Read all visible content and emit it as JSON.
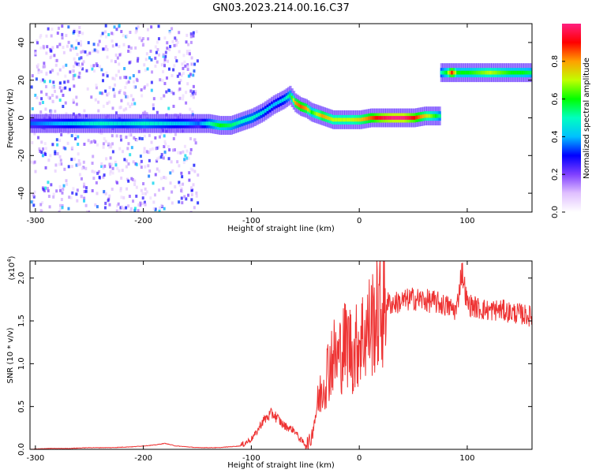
{
  "title": "GN03.2023.214.00.16.C37",
  "chart_data": [
    {
      "type": "heatmap",
      "xlabel": "Height of straight line (km)",
      "ylabel": "Frequency (Hz)",
      "xlim": [
        -305,
        160
      ],
      "ylim": [
        -50,
        50
      ],
      "xticks": [
        -300,
        -200,
        -100,
        0,
        100
      ],
      "yticks": [
        -40,
        -20,
        0,
        20,
        40
      ],
      "colorbar": {
        "label": "Normalized spectral amplitude",
        "range": [
          0,
          1
        ],
        "ticks": [
          "0.0",
          "0.2",
          "0.4",
          "0.6",
          "0.8"
        ],
        "colormap": [
          "#ffffff",
          "#e0c0ff",
          "#8040ff",
          "#0000ff",
          "#00c0ff",
          "#00ffc0",
          "#00ff00",
          "#c0ff00",
          "#ffa000",
          "#ff0000",
          "#ff2080"
        ]
      },
      "ridge": {
        "x": [
          -305,
          -280,
          -260,
          -240,
          -220,
          -200,
          -180,
          -160,
          -150,
          -140,
          -130,
          -120,
          -110,
          -100,
          -90,
          -80,
          -70,
          -65,
          -60,
          -55,
          -50,
          -45,
          -40,
          -35,
          -30,
          -25,
          -20,
          -10,
          0,
          10,
          20,
          30,
          40,
          50,
          60,
          70,
          75
        ],
        "y": [
          -3,
          -3,
          -3,
          -3,
          -3,
          -3,
          -3,
          -3,
          -3,
          -3,
          -4,
          -4,
          -2,
          0,
          3,
          7,
          10,
          12,
          8,
          6,
          5,
          3,
          2,
          1,
          0,
          -1,
          -1,
          -1,
          -1,
          0,
          0,
          0,
          0,
          0,
          1,
          1,
          1
        ],
        "level": [
          0.35,
          0.4,
          0.45,
          0.5,
          0.45,
          0.5,
          0.45,
          0.4,
          0.35,
          0.5,
          0.6,
          0.55,
          0.5,
          0.5,
          0.45,
          0.4,
          0.45,
          0.55,
          0.8,
          0.85,
          0.8,
          0.6,
          0.7,
          0.8,
          0.75,
          0.7,
          0.7,
          0.7,
          0.75,
          0.85,
          0.95,
          1.0,
          1.0,
          0.9,
          0.75,
          0.6,
          0.5
        ]
      },
      "high_band": {
        "x": [
          75,
          80,
          85,
          90,
          100,
          110,
          120,
          130,
          140,
          150,
          160
        ],
        "y": [
          24,
          24,
          24,
          24,
          24,
          24,
          24,
          24,
          24,
          24,
          24
        ],
        "level": [
          0.5,
          0.6,
          0.9,
          0.6,
          0.6,
          0.65,
          0.7,
          0.65,
          0.6,
          0.6,
          0.55
        ]
      },
      "noise_region": {
        "x_from": -305,
        "x_to": -150,
        "y_from": -50,
        "y_to": 50,
        "level": 0.2
      }
    },
    {
      "type": "line",
      "xlabel": "Height of straight line (km)",
      "ylabel": "SNR (10 * v/v)",
      "scale_label": "(x10",
      "scale_exponent": "4",
      "scale_suffix": ")",
      "xlim": [
        -305,
        160
      ],
      "ylim": [
        0,
        2.2
      ],
      "xticks": [
        -300,
        -200,
        -100,
        0,
        100
      ],
      "yticks": [
        "0.0",
        "0.5",
        "1.0",
        "1.5",
        "2.0"
      ],
      "color": "#ee3333",
      "series": [
        {
          "x": [
            -305,
            -290,
            -270,
            -250,
            -230,
            -210,
            -200,
            -190,
            -180,
            -170,
            -160,
            -150,
            -140,
            -130,
            -120,
            -110,
            -100,
            -95,
            -90,
            -85,
            -80,
            -75,
            -70,
            -65,
            -60,
            -55,
            -50,
            -45,
            -40,
            -35,
            -30,
            -25,
            -20,
            -15,
            -10,
            -5,
            0,
            5,
            10,
            15,
            20,
            25,
            30,
            40,
            50,
            60,
            70,
            80,
            90,
            95,
            100,
            110,
            120,
            130,
            140,
            150,
            160
          ],
          "y": [
            0.0,
            0.01,
            0.01,
            0.02,
            0.02,
            0.03,
            0.04,
            0.05,
            0.07,
            0.04,
            0.03,
            0.02,
            0.02,
            0.02,
            0.03,
            0.04,
            0.12,
            0.2,
            0.32,
            0.38,
            0.42,
            0.35,
            0.28,
            0.25,
            0.22,
            0.12,
            0.06,
            0.1,
            0.45,
            0.7,
            0.9,
            1.1,
            1.05,
            1.2,
            1.25,
            1.1,
            1.3,
            1.35,
            1.45,
            1.55,
            1.6,
            1.72,
            1.7,
            1.73,
            1.76,
            1.74,
            1.72,
            1.68,
            1.62,
            2.1,
            1.7,
            1.65,
            1.62,
            1.63,
            1.6,
            1.58,
            1.55
          ]
        }
      ]
    }
  ]
}
